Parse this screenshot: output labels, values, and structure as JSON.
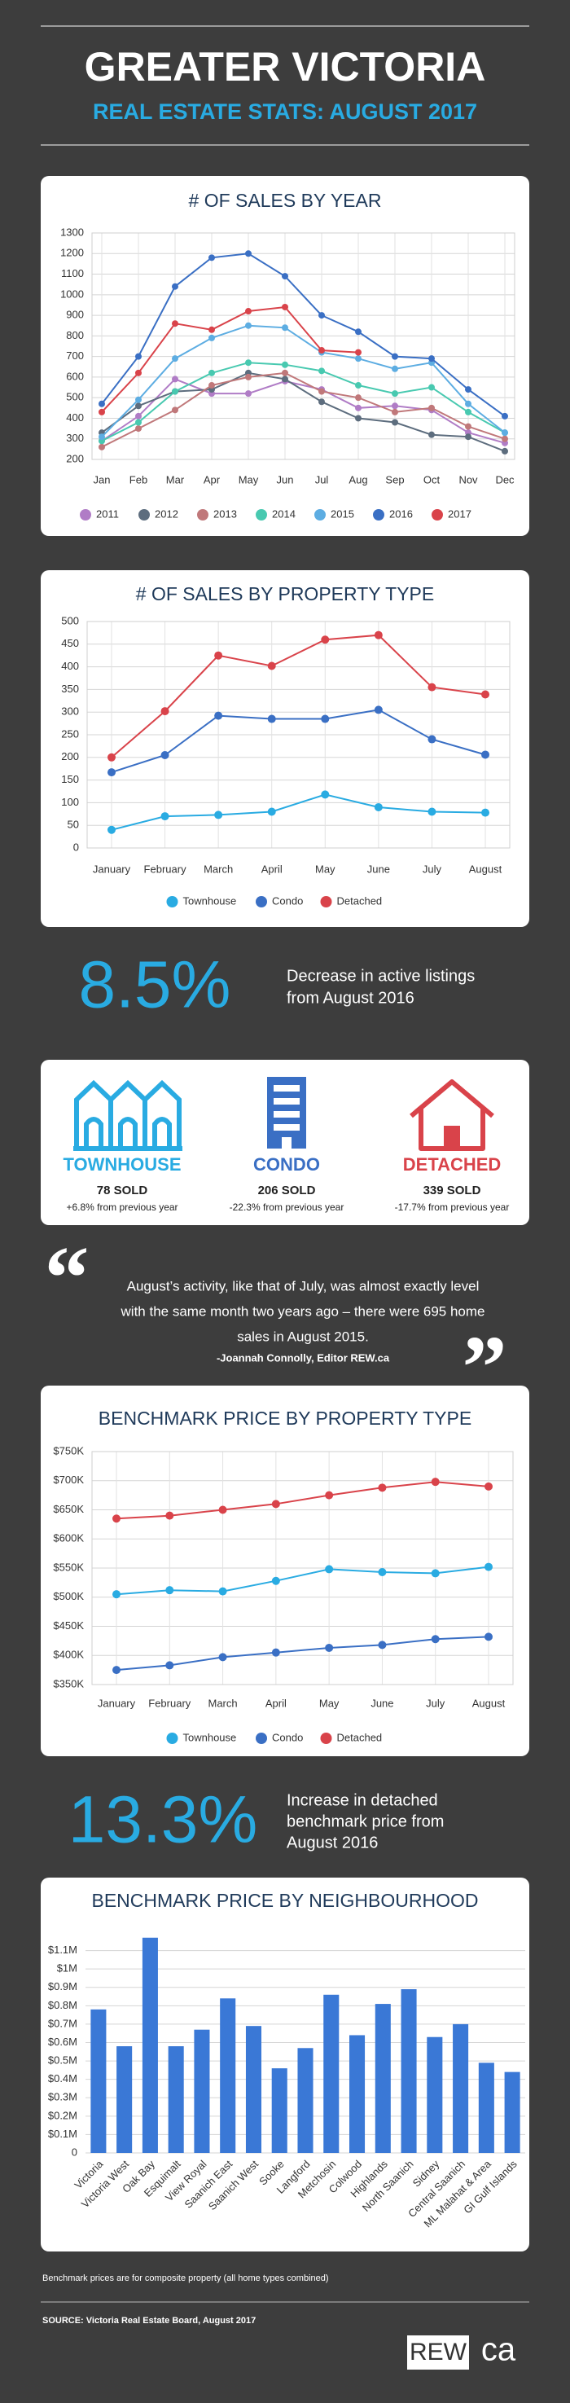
{
  "header": {
    "title": "GREATER VICTORIA",
    "subtitle": "REAL ESTATE STATS: AUGUST 2017"
  },
  "stat_listings": {
    "value": "8.5%",
    "text": [
      "Decrease in active listings",
      "from August 2016"
    ]
  },
  "property_types": [
    {
      "label": "TOWNHOUSE",
      "sold": "78 SOLD",
      "change": "+6.8% from previous year",
      "color": "#29abe2"
    },
    {
      "label": "CONDO",
      "sold": "206 SOLD",
      "change": "-22.3% from previous year",
      "color": "#3a6fc4"
    },
    {
      "label": "DETACHED",
      "sold": "339 SOLD",
      "change": "-17.7% from previous year",
      "color": "#d9434a"
    }
  ],
  "quote": {
    "open": "“",
    "lines": [
      "August’s activity, like that of July, was almost exactly level",
      "with the same month two years ago – there were 695 home",
      "sales in August 2015."
    ],
    "attribution": "-Joannah Connolly, Editor REW.ca",
    "close": "”"
  },
  "stat_benchmark": {
    "value": "13.3%",
    "text": [
      "Increase in detached",
      "benchmark price from",
      "August 2016"
    ]
  },
  "footnote": "Benchmark prices are for composite property (all home types combined)",
  "source": "SOURCE: Victoria Real Estate Board, August 2017",
  "logo": {
    "left": "REW",
    "right": "ca"
  },
  "chart_data": [
    {
      "type": "line",
      "title": "# OF SALES BY YEAR",
      "categories": [
        "Jan",
        "Feb",
        "Mar",
        "Apr",
        "May",
        "Jun",
        "Jul",
        "Aug",
        "Sep",
        "Oct",
        "Nov",
        "Dec"
      ],
      "series": [
        {
          "name": "2011",
          "color": "#b07cc6",
          "values": [
            290,
            410,
            590,
            520,
            520,
            580,
            540,
            450,
            460,
            440,
            330,
            280
          ]
        },
        {
          "name": "2012",
          "color": "#5d6d7e",
          "values": [
            330,
            460,
            530,
            540,
            620,
            590,
            480,
            400,
            380,
            320,
            310,
            240
          ]
        },
        {
          "name": "2013",
          "color": "#c0787a",
          "values": [
            260,
            350,
            440,
            560,
            600,
            620,
            530,
            500,
            430,
            450,
            360,
            300
          ]
        },
        {
          "name": "2014",
          "color": "#48c9b0",
          "values": [
            290,
            380,
            530,
            620,
            670,
            660,
            630,
            560,
            520,
            550,
            430,
            330
          ]
        },
        {
          "name": "2015",
          "color": "#5dade2",
          "values": [
            310,
            490,
            690,
            790,
            850,
            840,
            720,
            690,
            640,
            670,
            470,
            330
          ]
        },
        {
          "name": "2016",
          "color": "#3a6fc4",
          "values": [
            470,
            700,
            1040,
            1180,
            1200,
            1090,
            900,
            820,
            700,
            690,
            540,
            410
          ]
        },
        {
          "name": "2017",
          "color": "#d9434a",
          "values": [
            430,
            620,
            860,
            830,
            920,
            940,
            730,
            720,
            null,
            null,
            null,
            null
          ]
        }
      ],
      "ylim": [
        200,
        1300
      ],
      "yticks": [
        200,
        300,
        400,
        500,
        600,
        700,
        800,
        900,
        1000,
        1100,
        1200,
        1300
      ],
      "grid": true,
      "legend": "bottom"
    },
    {
      "type": "line",
      "title": "# OF SALES BY PROPERTY TYPE",
      "categories": [
        "January",
        "February",
        "March",
        "April",
        "May",
        "June",
        "July",
        "August"
      ],
      "series": [
        {
          "name": "Townhouse",
          "color": "#29abe2",
          "values": [
            40,
            70,
            73,
            80,
            118,
            90,
            80,
            78
          ]
        },
        {
          "name": "Condo",
          "color": "#3a6fc4",
          "values": [
            167,
            205,
            292,
            285,
            285,
            305,
            240,
            206
          ]
        },
        {
          "name": "Detached",
          "color": "#d9434a",
          "values": [
            200,
            302,
            425,
            402,
            460,
            470,
            355,
            339
          ]
        }
      ],
      "ylim": [
        0,
        500
      ],
      "yticks": [
        0,
        50,
        100,
        150,
        200,
        250,
        300,
        350,
        400,
        450,
        500
      ],
      "grid": true,
      "legend": "bottom"
    },
    {
      "type": "line",
      "title": "BENCHMARK PRICE BY PROPERTY TYPE",
      "categories": [
        "January",
        "February",
        "March",
        "April",
        "May",
        "June",
        "July",
        "August"
      ],
      "series": [
        {
          "name": "Townhouse",
          "color": "#29abe2",
          "values": [
            505000,
            512000,
            510000,
            528000,
            548000,
            543000,
            541000,
            552000
          ]
        },
        {
          "name": "Condo",
          "color": "#3a6fc4",
          "values": [
            375000,
            383000,
            397000,
            405000,
            413000,
            418000,
            428000,
            432000
          ]
        },
        {
          "name": "Detached",
          "color": "#d9434a",
          "values": [
            635000,
            640000,
            650000,
            660000,
            675000,
            688000,
            698000,
            690000
          ]
        }
      ],
      "ylim": [
        350000,
        750000
      ],
      "yticks": [
        {
          "value": 350000,
          "label": "$350K"
        },
        {
          "value": 400000,
          "label": "$400K"
        },
        {
          "value": 450000,
          "label": "$450K"
        },
        {
          "value": 500000,
          "label": "$500K"
        },
        {
          "value": 550000,
          "label": "$550K"
        },
        {
          "value": 600000,
          "label": "$600K"
        },
        {
          "value": 650000,
          "label": "$650K"
        },
        {
          "value": 700000,
          "label": "$700K"
        },
        {
          "value": 750000,
          "label": "$750K"
        }
      ],
      "grid": true,
      "legend": "bottom"
    },
    {
      "type": "bar",
      "title": "BENCHMARK PRICE BY NEIGHBOURHOOD",
      "categories": [
        "Victoria",
        "Victoria West",
        "Oak Bay",
        "Esquimalt",
        "View Royal",
        "Saanich East",
        "Saanich West",
        "Sooke",
        "Langford",
        "Metchosin",
        "Colwood",
        "Highlands",
        "North Saanich",
        "Sidney",
        "Central Saanich",
        "ML Malahat & Area",
        "GI Gulf Islands"
      ],
      "values": [
        780000,
        580000,
        1170000,
        580000,
        670000,
        840000,
        690000,
        460000,
        570000,
        860000,
        640000,
        810000,
        890000,
        630000,
        700000,
        490000,
        440000
      ],
      "color": "#3a78d6",
      "ylim": [
        0,
        1200000
      ],
      "yticks": [
        0,
        {
          "value": 100000,
          "label": "$0.1M"
        },
        {
          "value": 200000,
          "label": "$0.2M"
        },
        {
          "value": 300000,
          "label": "$0.3M"
        },
        {
          "value": 400000,
          "label": "$0.4M"
        },
        {
          "value": 500000,
          "label": "$0.5M"
        },
        {
          "value": 600000,
          "label": "$0.6M"
        },
        {
          "value": 700000,
          "label": "$0.7M"
        },
        {
          "value": 800000,
          "label": "$0.8M"
        },
        {
          "value": 900000,
          "label": "$0.9M"
        },
        {
          "value": 1000000,
          "label": "$1M"
        },
        {
          "value": 1100000,
          "label": "$1.1M"
        }
      ],
      "grid": true
    }
  ]
}
